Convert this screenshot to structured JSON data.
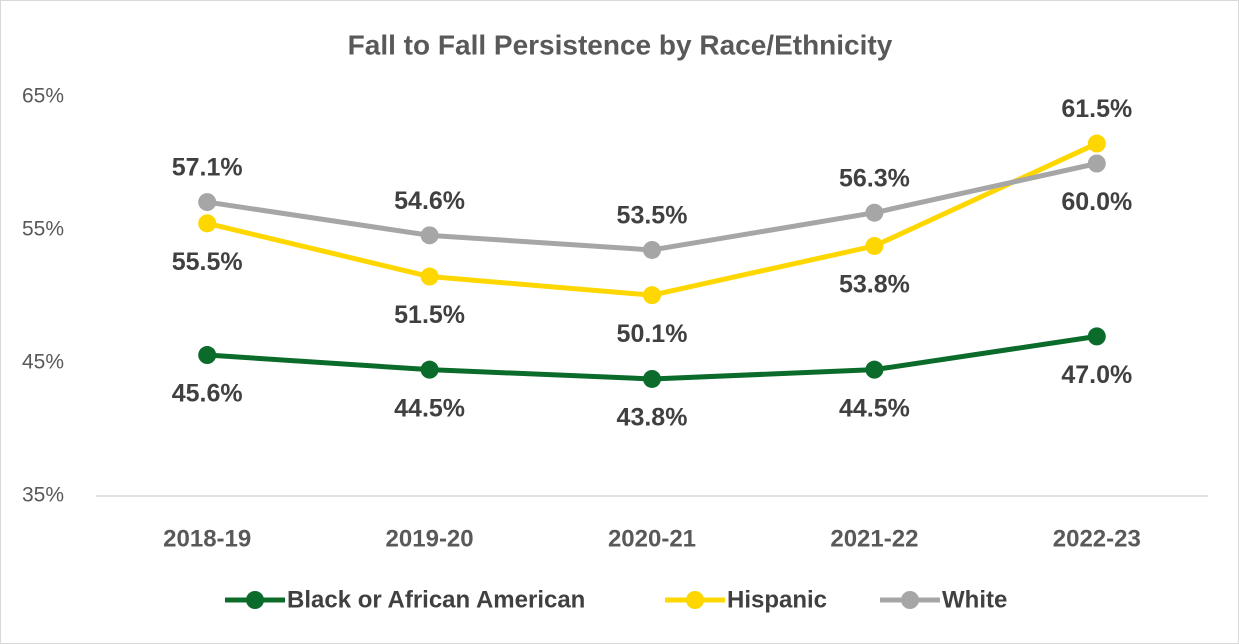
{
  "chart_data": {
    "type": "line",
    "title": "Fall to Fall Persistence by Race/Ethnicity",
    "categories": [
      "2018-19",
      "2019-20",
      "2020-21",
      "2021-22",
      "2022-23"
    ],
    "series": [
      {
        "name": "Black or African American",
        "color": "#0b6b2b",
        "values": [
          45.6,
          44.5,
          43.8,
          44.5,
          47.0
        ],
        "value_labels": [
          "45.6%",
          "44.5%",
          "43.8%",
          "44.5%",
          "47.0%"
        ]
      },
      {
        "name": "Hispanic",
        "color": "#ffd700",
        "values": [
          55.5,
          51.5,
          50.1,
          53.8,
          61.5
        ],
        "value_labels": [
          "55.5%",
          "51.5%",
          "50.1%",
          "53.8%",
          "61.5%"
        ]
      },
      {
        "name": "White",
        "color": "#a6a6a6",
        "values": [
          57.1,
          54.6,
          53.5,
          56.3,
          60.0
        ],
        "value_labels": [
          "57.1%",
          "54.6%",
          "53.5%",
          "56.3%",
          "60.0%"
        ]
      }
    ],
    "ylim": [
      35,
      65
    ],
    "yticks": [
      {
        "value": 35,
        "label": "35%"
      },
      {
        "value": 45,
        "label": "45%"
      },
      {
        "value": 55,
        "label": "55%"
      },
      {
        "value": 65,
        "label": "65%"
      }
    ],
    "grid": false,
    "legend": "bottom"
  }
}
